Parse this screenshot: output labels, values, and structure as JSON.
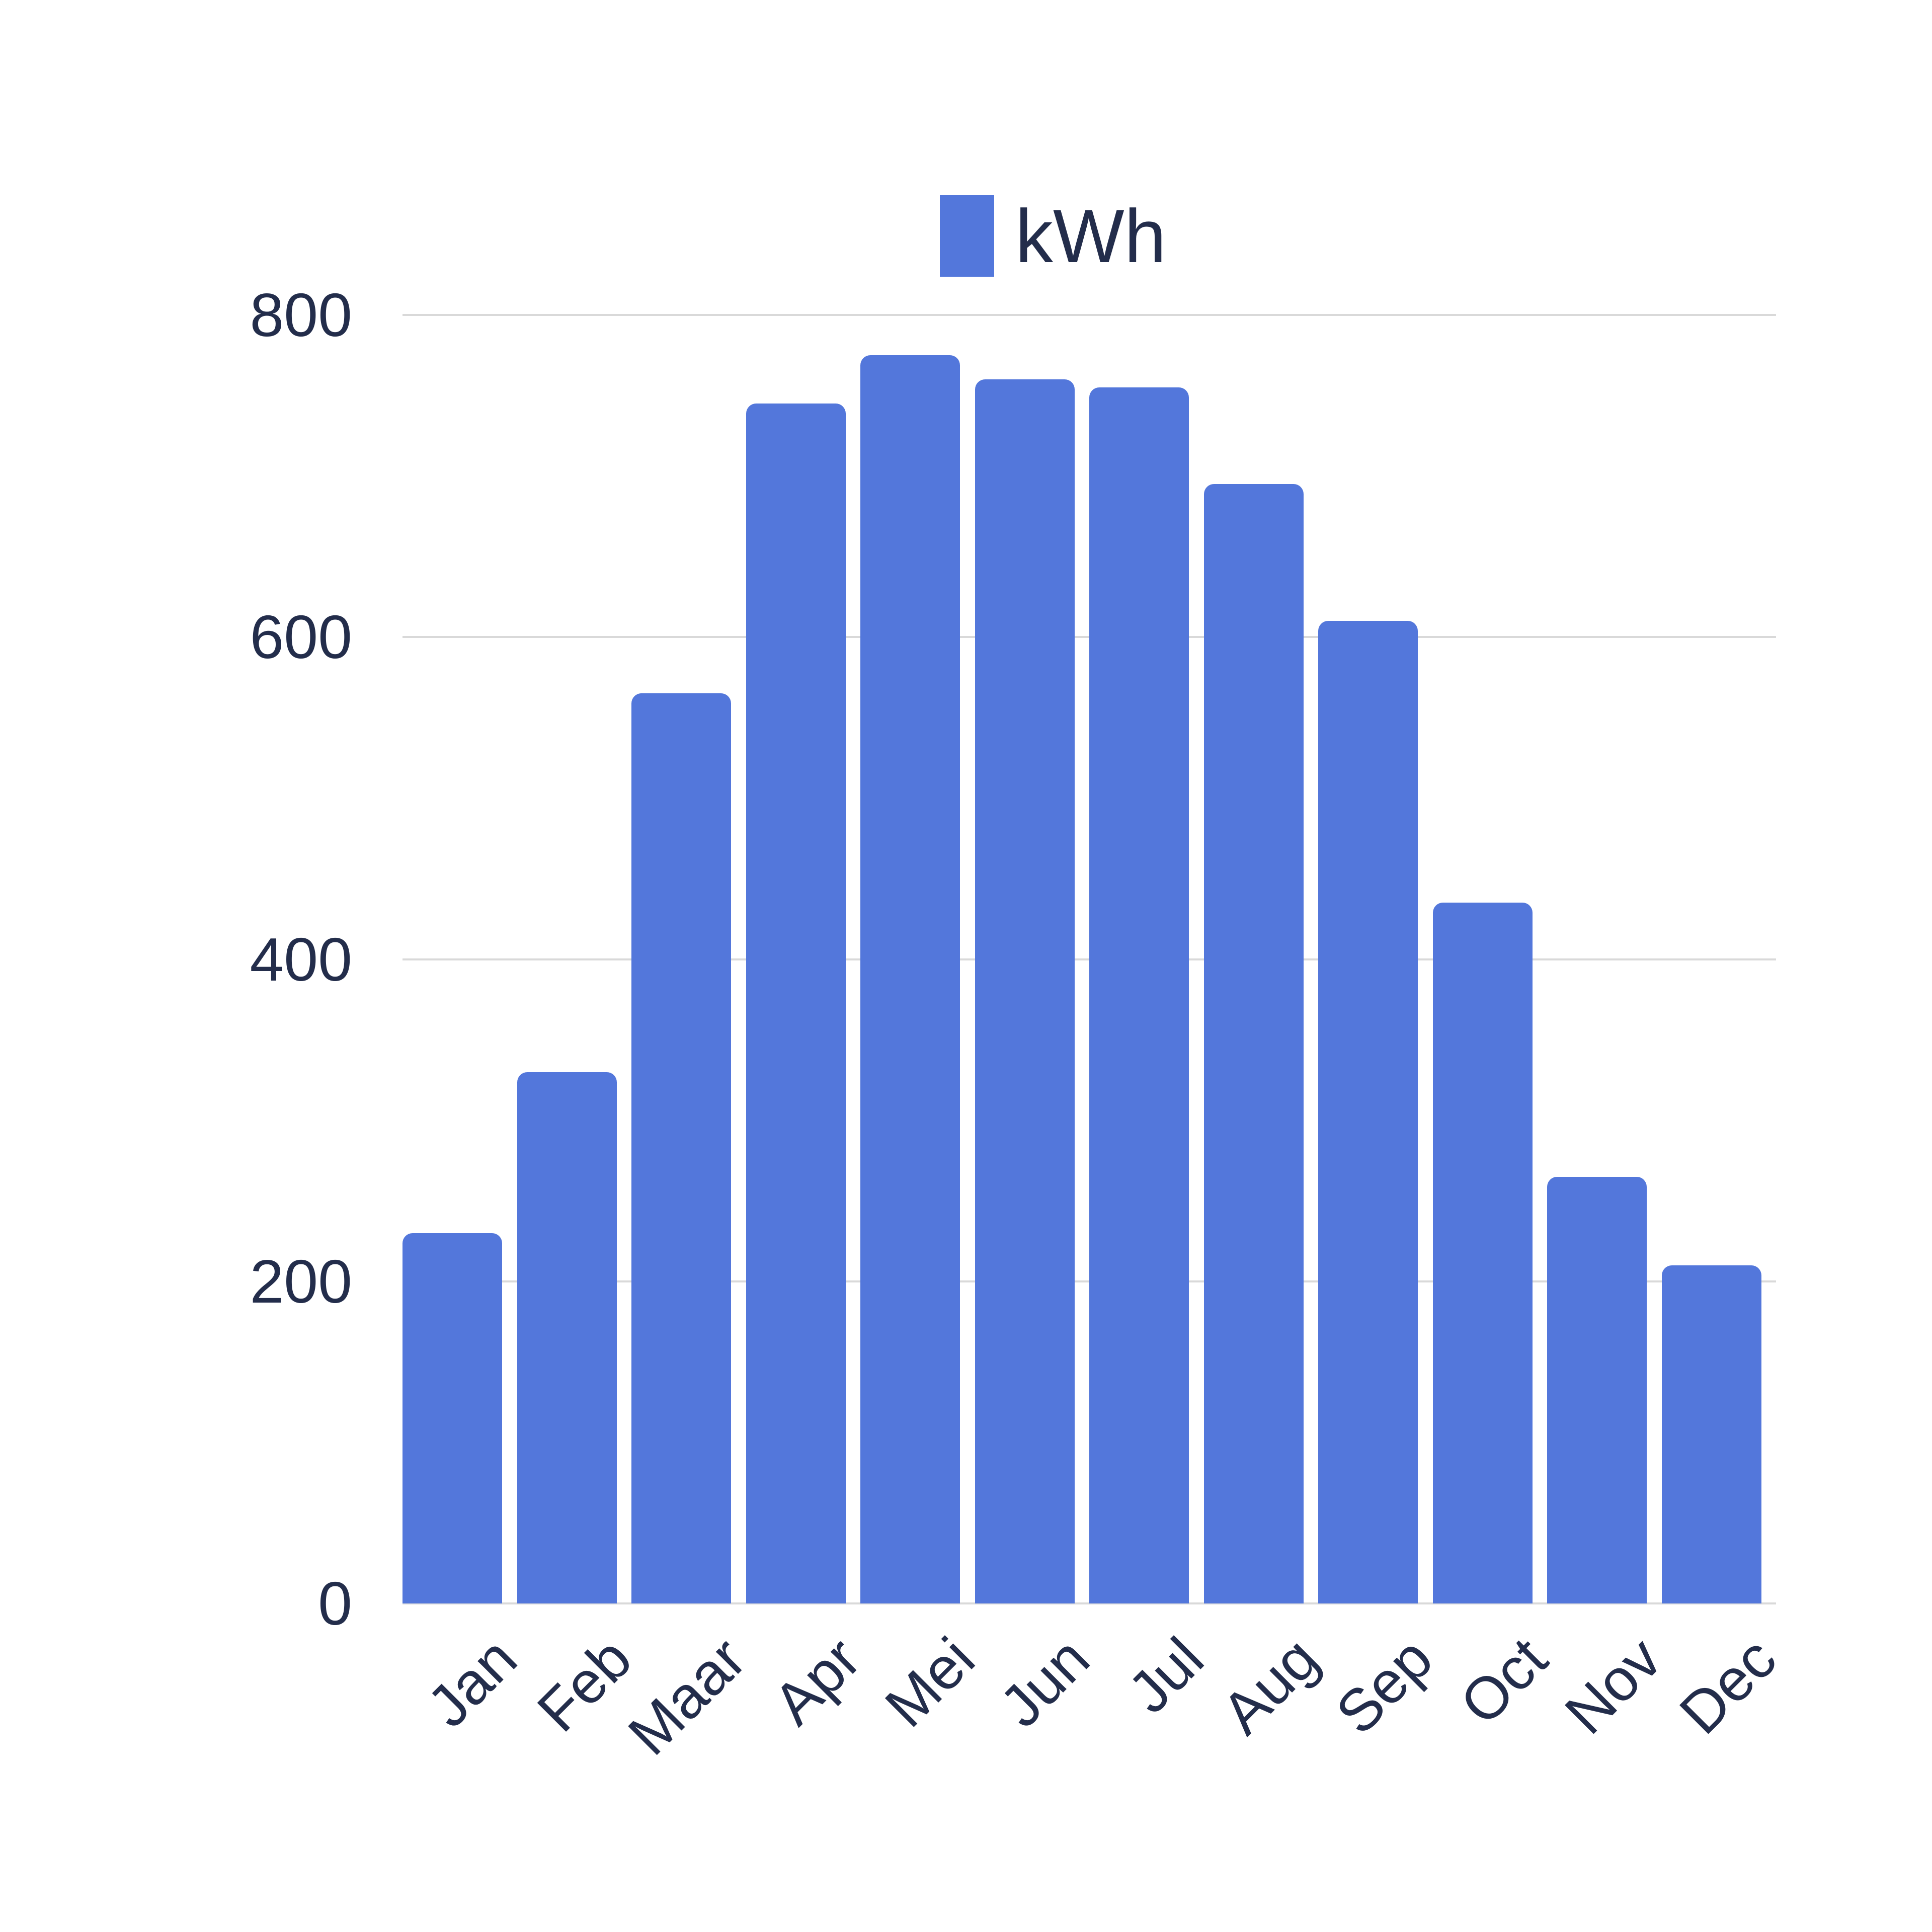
{
  "legend": {
    "label": "kWh"
  },
  "colors": {
    "bar": "#5377db",
    "text": "#232d4b",
    "gridline": "#d9d9d9",
    "background": "#ffffff"
  },
  "chart_data": {
    "type": "bar",
    "title": "",
    "xlabel": "",
    "ylabel": "",
    "categories": [
      "Jan",
      "Feb",
      "Maar",
      "Apr",
      "Mei",
      "Jun",
      "Jul",
      "Aug",
      "Sep",
      "Oct",
      "Nov",
      "Dec"
    ],
    "series": [
      {
        "name": "kWh",
        "values": [
          230,
          330,
          565,
          745,
          775,
          760,
          755,
          695,
          610,
          435,
          265,
          210
        ]
      }
    ],
    "ylim": [
      0,
      800
    ],
    "yticks": [
      "0",
      "200",
      "400",
      "600",
      "800"
    ],
    "grid": "horizontal",
    "legend_position": "top-center",
    "x_label_rotation_deg": -45
  }
}
